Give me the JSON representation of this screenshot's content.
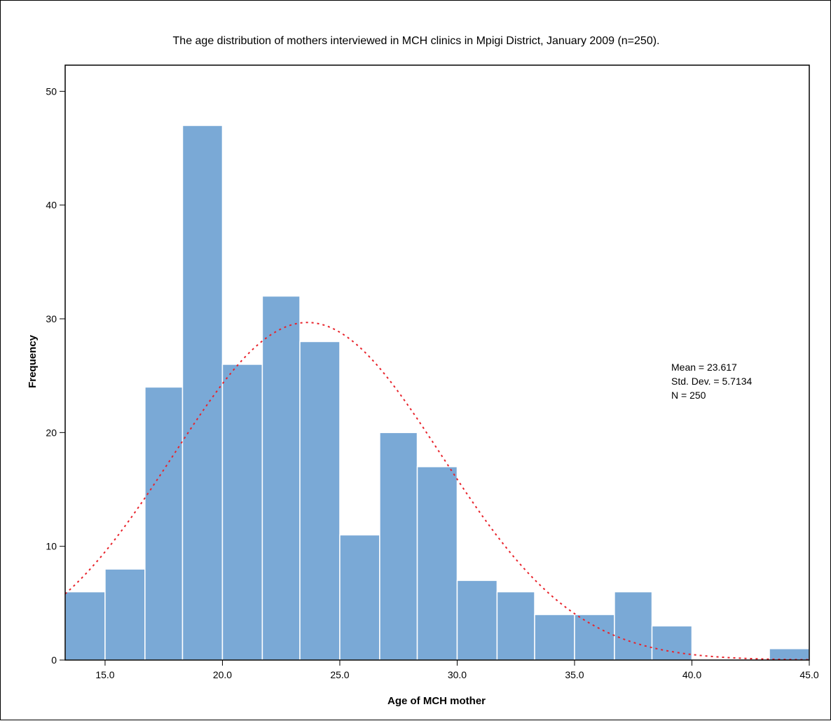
{
  "chart_data": {
    "type": "bar",
    "title": "The age distribution of mothers interviewed in MCH clinics in Mpigi District, January 2009 (n=250).",
    "xlabel": "Age of MCH mother",
    "ylabel": "Frequency",
    "xlim": [
      13.3,
      45.0
    ],
    "ylim": [
      0,
      52.3
    ],
    "x_ticks": [
      15.0,
      20.0,
      25.0,
      30.0,
      35.0,
      40.0,
      45.0
    ],
    "x_tick_labels": [
      "15.0",
      "20.0",
      "25.0",
      "30.0",
      "35.0",
      "40.0",
      "45.0"
    ],
    "y_ticks": [
      0,
      10,
      20,
      30,
      40,
      50
    ],
    "y_tick_labels": [
      "0",
      "10",
      "20",
      "30",
      "40",
      "50"
    ],
    "bins": [
      {
        "start": 13.3,
        "end": 15.0,
        "value": 6
      },
      {
        "start": 15.0,
        "end": 16.7,
        "value": 8
      },
      {
        "start": 16.7,
        "end": 18.3,
        "value": 24
      },
      {
        "start": 18.3,
        "end": 20.0,
        "value": 47
      },
      {
        "start": 20.0,
        "end": 21.7,
        "value": 26
      },
      {
        "start": 21.7,
        "end": 23.3,
        "value": 32
      },
      {
        "start": 23.3,
        "end": 25.0,
        "value": 28
      },
      {
        "start": 25.0,
        "end": 26.7,
        "value": 11
      },
      {
        "start": 26.7,
        "end": 28.3,
        "value": 20
      },
      {
        "start": 28.3,
        "end": 30.0,
        "value": 17
      },
      {
        "start": 30.0,
        "end": 31.7,
        "value": 7
      },
      {
        "start": 31.7,
        "end": 33.3,
        "value": 6
      },
      {
        "start": 33.3,
        "end": 35.0,
        "value": 4
      },
      {
        "start": 35.0,
        "end": 36.7,
        "value": 4
      },
      {
        "start": 36.7,
        "end": 38.3,
        "value": 6
      },
      {
        "start": 38.3,
        "end": 40.0,
        "value": 3
      },
      {
        "start": 40.0,
        "end": 41.7,
        "value": 0
      },
      {
        "start": 41.7,
        "end": 43.3,
        "value": 0
      },
      {
        "start": 43.3,
        "end": 45.0,
        "value": 1
      }
    ],
    "normal_curve": {
      "mean": 23.617,
      "sd": 5.7134,
      "n": 250,
      "style": "dotted"
    },
    "stats_lines": [
      "Mean = 23.617",
      "Std. Dev. = 5.7134",
      "N = 250"
    ],
    "colors": {
      "bar": "#7aa9d6",
      "bar_edge": "#ffffff",
      "curve": "#e8232b",
      "axis": "#000000"
    },
    "grid": false,
    "legend": "none"
  }
}
